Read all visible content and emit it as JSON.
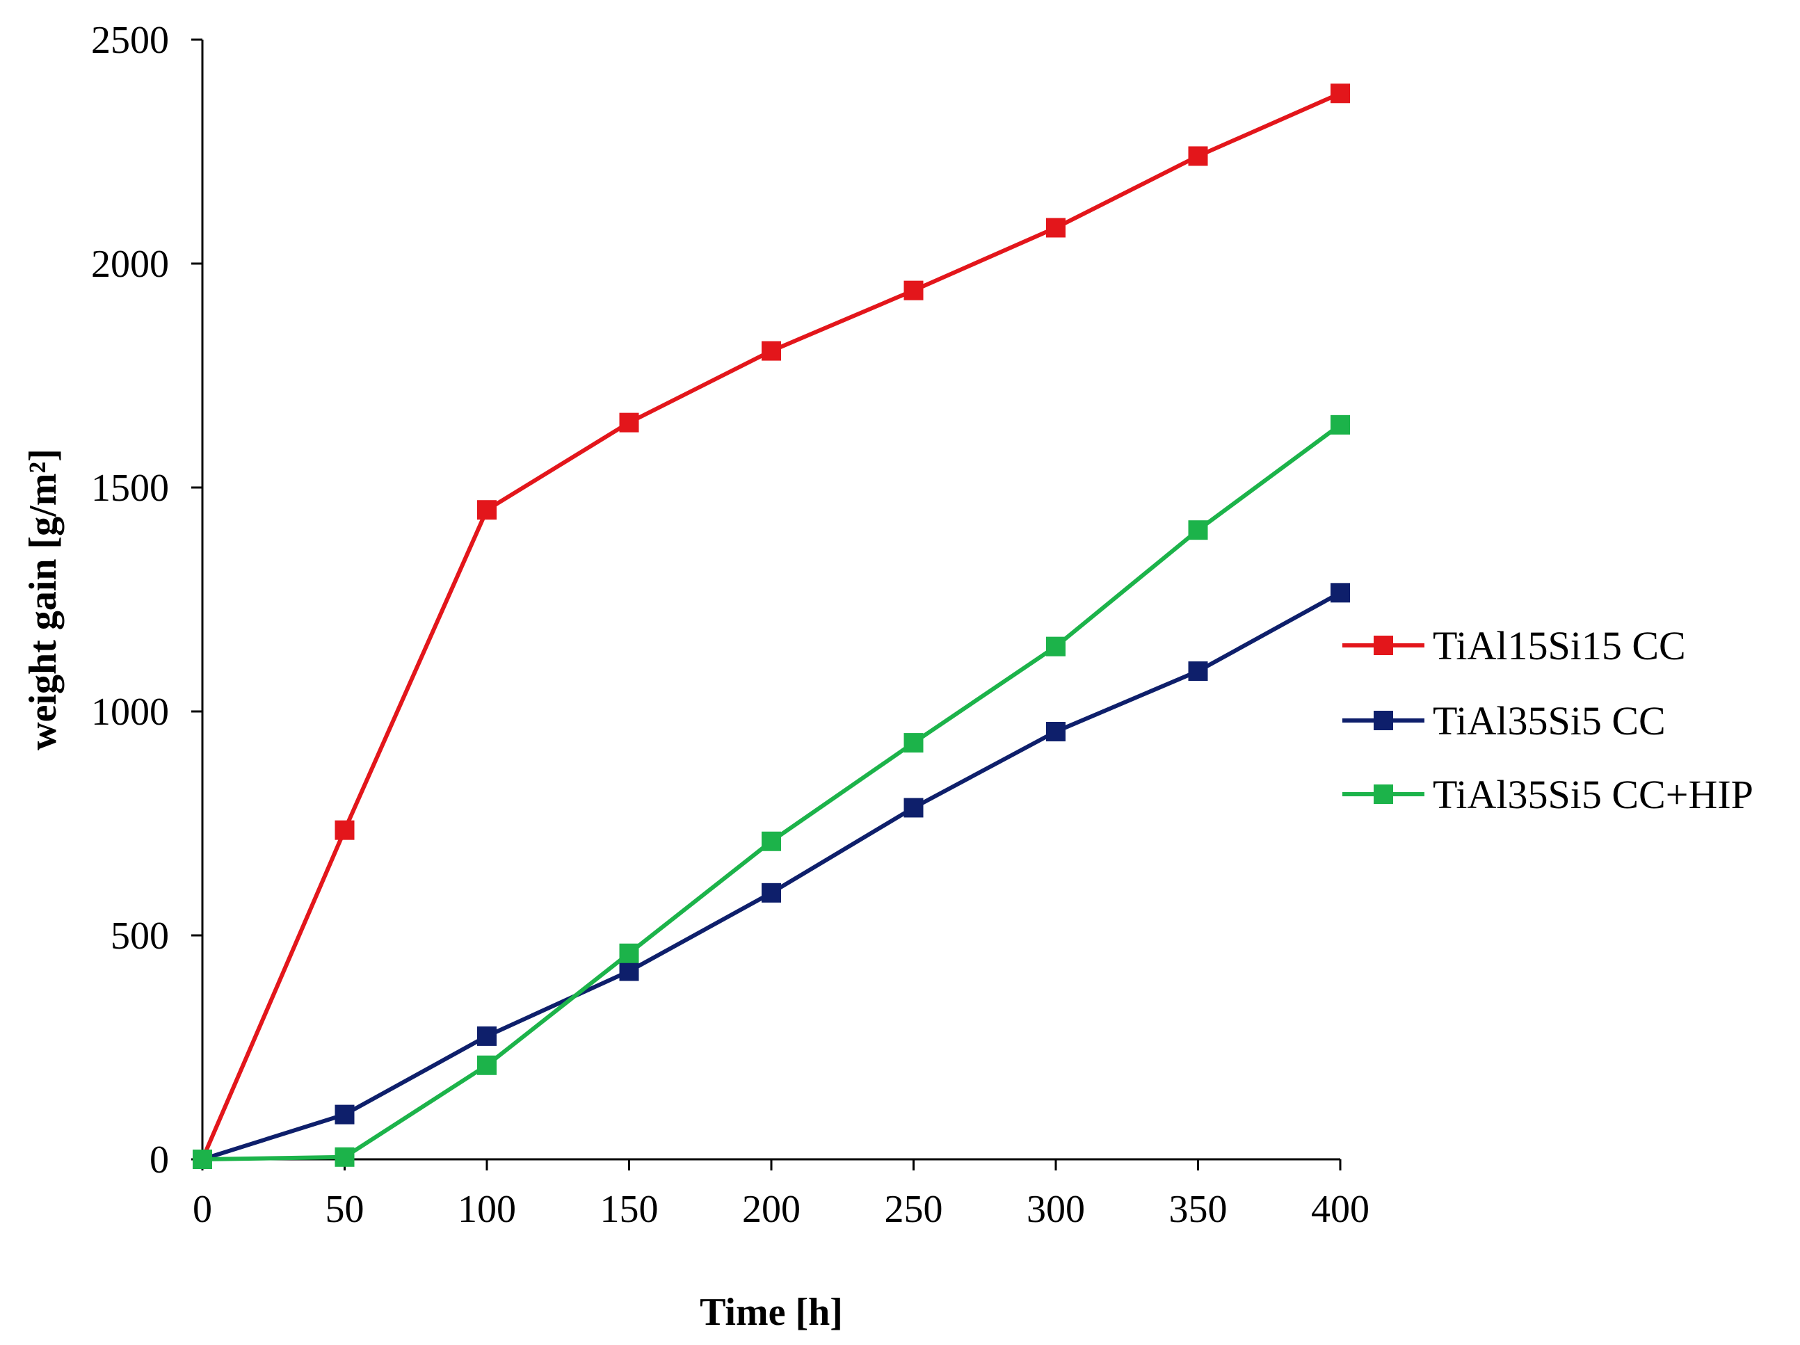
{
  "chart_data": {
    "type": "line",
    "title": "",
    "xlabel": "Time [h]",
    "ylabel": "weight gain [g/m²]",
    "xlim": [
      0,
      400
    ],
    "ylim": [
      0,
      2500
    ],
    "xticks": [
      0,
      50,
      100,
      150,
      200,
      250,
      300,
      350,
      400
    ],
    "yticks": [
      0,
      500,
      1000,
      1500,
      2000,
      2500
    ],
    "xtick_labels": [
      "0",
      "50",
      "100",
      "150",
      "200",
      "250",
      "300",
      "350",
      "400"
    ],
    "ytick_labels": [
      "0",
      "500",
      "1000",
      "1500",
      "2000",
      "2500"
    ],
    "grid": false,
    "legend_position": "right",
    "x": [
      0,
      50,
      100,
      150,
      200,
      250,
      300,
      350,
      400
    ],
    "series": [
      {
        "name": "TiAl15Si15 CC",
        "color": "#e3161b",
        "marker": "square",
        "values": [
          0,
          735,
          1450,
          1645,
          1805,
          1940,
          2080,
          2240,
          2380
        ]
      },
      {
        "name": "TiAl35Si5 CC",
        "color": "#0e1f6b",
        "marker": "square",
        "values": [
          0,
          100,
          275,
          420,
          595,
          785,
          955,
          1090,
          1265
        ]
      },
      {
        "name": "TiAl35Si5 CC+HIP",
        "color": "#1cb34a",
        "marker": "square",
        "values": [
          0,
          5,
          210,
          460,
          710,
          930,
          1145,
          1405,
          1640
        ]
      }
    ]
  }
}
